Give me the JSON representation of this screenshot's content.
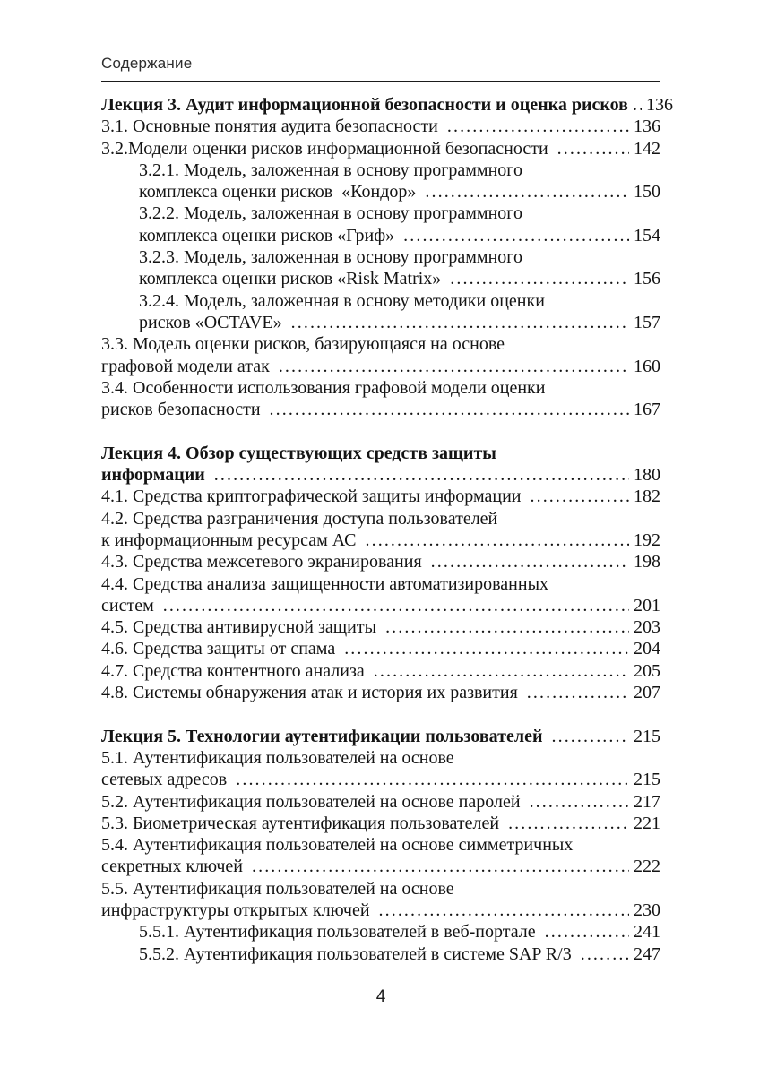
{
  "document": {
    "header": "Содержание",
    "footer_page_number": "4"
  },
  "toc": {
    "entries": [
      {
        "bold": true,
        "indent": 0,
        "gap_before": false,
        "text_lines": [
          "Лекция 3. Аудит информационной безопасности и оценка рисков"
        ],
        "page": "136"
      },
      {
        "bold": false,
        "indent": 0,
        "gap_before": false,
        "text_lines": [
          "3.1. Основные понятия аудита безопасности "
        ],
        "page": "136"
      },
      {
        "bold": false,
        "indent": 0,
        "gap_before": false,
        "text_lines": [
          "3.2.Модели оценки рисков информационной безопасности "
        ],
        "page": "142"
      },
      {
        "bold": false,
        "indent": 1,
        "gap_before": false,
        "text_lines": [
          "3.2.1. Модель, заложенная в основу программного",
          "комплекса оценки рисков  «Кондор» "
        ],
        "page": "150"
      },
      {
        "bold": false,
        "indent": 1,
        "gap_before": false,
        "text_lines": [
          "3.2.2. Модель, заложенная в основу программного",
          "комплекса оценки рисков «Гриф» "
        ],
        "page": "154"
      },
      {
        "bold": false,
        "indent": 1,
        "gap_before": false,
        "text_lines": [
          "3.2.3. Модель, заложенная в основу программного",
          "комплекса оценки рисков «Risk Matrix» "
        ],
        "page": "156"
      },
      {
        "bold": false,
        "indent": 1,
        "gap_before": false,
        "text_lines": [
          "3.2.4. Модель, заложенная в основу методики оценки",
          "рисков «OCTAVE» "
        ],
        "page": "157"
      },
      {
        "bold": false,
        "indent": 0,
        "gap_before": false,
        "text_lines": [
          "3.3. Модель оценки рисков, базирующаяся на основе",
          "графовой модели атак "
        ],
        "page": "160"
      },
      {
        "bold": false,
        "indent": 0,
        "gap_before": false,
        "text_lines": [
          "3.4. Особенности использования графовой модели оценки",
          "рисков безопасности "
        ],
        "page": "167"
      },
      {
        "bold": true,
        "indent": 0,
        "gap_before": true,
        "text_lines": [
          "Лекция 4. Обзор существующих средств защиты",
          "информации "
        ],
        "page": "180"
      },
      {
        "bold": false,
        "indent": 0,
        "gap_before": false,
        "text_lines": [
          "4.1. Средства криптографической защиты информации "
        ],
        "page": "182"
      },
      {
        "bold": false,
        "indent": 0,
        "gap_before": false,
        "text_lines": [
          "4.2. Средства разграничения доступа пользователей",
          "к информационным ресурсам АС "
        ],
        "page": "192"
      },
      {
        "bold": false,
        "indent": 0,
        "gap_before": false,
        "text_lines": [
          "4.3. Средства межсетевого экранирования "
        ],
        "page": "198"
      },
      {
        "bold": false,
        "indent": 0,
        "gap_before": false,
        "text_lines": [
          "4.4. Средства анализа защищенности автоматизированных",
          "систем "
        ],
        "page": "201"
      },
      {
        "bold": false,
        "indent": 0,
        "gap_before": false,
        "text_lines": [
          "4.5. Средства антивирусной защиты "
        ],
        "page": "203"
      },
      {
        "bold": false,
        "indent": 0,
        "gap_before": false,
        "text_lines": [
          "4.6. Средства защиты от спама "
        ],
        "page": "204"
      },
      {
        "bold": false,
        "indent": 0,
        "gap_before": false,
        "text_lines": [
          "4.7. Средства контентного анализа "
        ],
        "page": "205"
      },
      {
        "bold": false,
        "indent": 0,
        "gap_before": false,
        "text_lines": [
          "4.8. Системы обнаружения атак и история их развития "
        ],
        "page": "207"
      },
      {
        "bold": true,
        "indent": 0,
        "gap_before": true,
        "text_lines": [
          "Лекция 5. Технологии аутентификации пользователей "
        ],
        "page": "215"
      },
      {
        "bold": false,
        "indent": 0,
        "gap_before": false,
        "text_lines": [
          "5.1. Аутентификация пользователей на основе",
          "сетевых адресов "
        ],
        "page": "215"
      },
      {
        "bold": false,
        "indent": 0,
        "gap_before": false,
        "text_lines": [
          "5.2. Аутентификация пользователей на основе паролей "
        ],
        "page": "217"
      },
      {
        "bold": false,
        "indent": 0,
        "gap_before": false,
        "text_lines": [
          "5.3. Биометрическая аутентификация пользователей "
        ],
        "page": "221"
      },
      {
        "bold": false,
        "indent": 0,
        "gap_before": false,
        "text_lines": [
          "5.4. Аутентификация пользователей на основе симметричных",
          "секретных ключей "
        ],
        "page": "222"
      },
      {
        "bold": false,
        "indent": 0,
        "gap_before": false,
        "text_lines": [
          "5.5. Аутентификация пользователей на основе",
          "инфраструктуры открытых ключей "
        ],
        "page": "230"
      },
      {
        "bold": false,
        "indent": 1,
        "gap_before": false,
        "text_lines": [
          "5.5.1. Аутентификация пользователей в веб-портале "
        ],
        "page": "241"
      },
      {
        "bold": false,
        "indent": 1,
        "gap_before": false,
        "text_lines": [
          "5.5.2. Аутентификация пользователей в системе SAP R/3 "
        ],
        "page": "247"
      }
    ]
  }
}
